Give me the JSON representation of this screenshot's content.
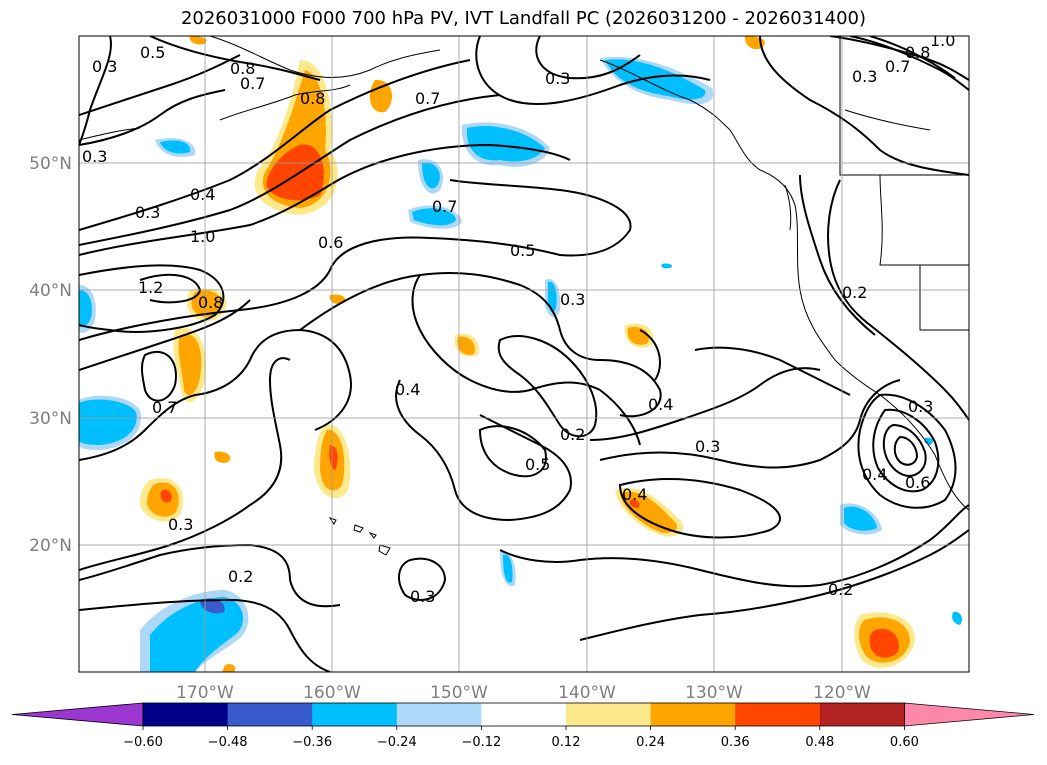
{
  "title": "2026031000 F000 700 hPa PV, IVT Landfall PC (2026031200 - 2026031400)",
  "lon_labels": [
    "170°W",
    "160°W",
    "150°W",
    "140°W",
    "130°W",
    "120°W"
  ],
  "lat_labels": [
    "50°N",
    "40°N",
    "30°N",
    "20°N"
  ],
  "colorbar": {
    "ticks": [
      "−0.60",
      "−0.48",
      "−0.36",
      "−0.24",
      "−0.12",
      "0.12",
      "0.24",
      "0.36",
      "0.48",
      "0.60"
    ],
    "colors": [
      "#9d37d1",
      "#00008b",
      "#3a5bcc",
      "#00bfff",
      "#add8f7",
      "#ffffff",
      "#fde98b",
      "#ffa500",
      "#ff4500",
      "#b22222",
      "#ff88aa"
    ]
  },
  "contour_labels": [
    "0.5",
    "0.8",
    "0.7",
    "0.3",
    "0.3",
    "0.8",
    "0.7",
    "0.3",
    "0.4",
    "0.3",
    "1.0",
    "1.2",
    "0.8",
    "0.6",
    "0.7",
    "0.5",
    "0.3",
    "0.2",
    "0.4",
    "0.7",
    "0.3",
    "0.2",
    "0.5",
    "0.4",
    "0.3",
    "0.4",
    "0.2",
    "0.3",
    "0.2",
    "0.3",
    "0.6",
    "0.4",
    "0.3",
    "0.7",
    "1.0",
    "0.8"
  ]
}
